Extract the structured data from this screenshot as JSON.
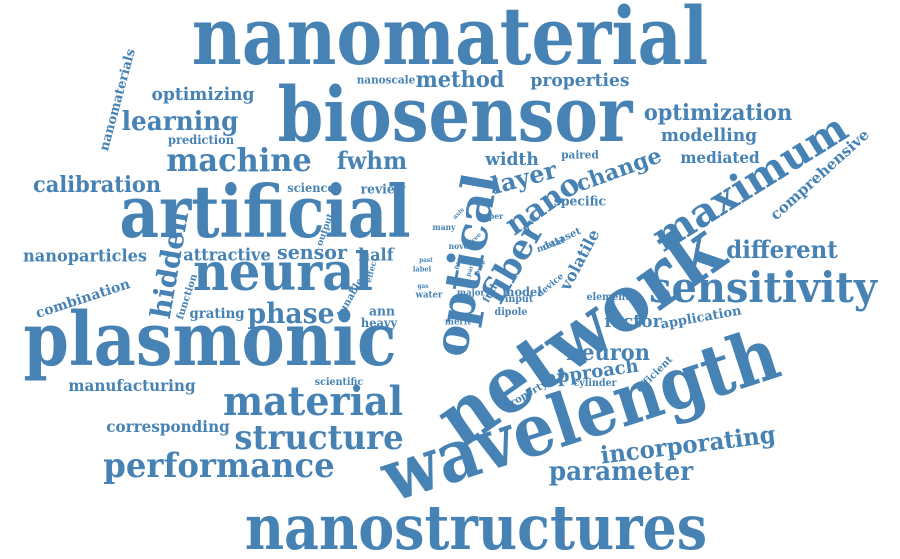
{
  "color": "#4682b4",
  "words": [
    {
      "text": "nanomaterial"
    },
    {
      "text": "biosensor"
    },
    {
      "text": "artificial"
    },
    {
      "text": "plasmonic"
    },
    {
      "text": "network"
    },
    {
      "text": "wavelength"
    },
    {
      "text": "nanostructures"
    },
    {
      "text": "optical"
    },
    {
      "text": "neural"
    },
    {
      "text": "maximum"
    },
    {
      "text": "sensitivity"
    },
    {
      "text": "material"
    },
    {
      "text": "structure"
    },
    {
      "text": "performance"
    },
    {
      "text": "machine"
    },
    {
      "text": "fiber"
    },
    {
      "text": "nano"
    },
    {
      "text": "hidden"
    },
    {
      "text": "phase"
    },
    {
      "text": "parameter"
    },
    {
      "text": "incorporating"
    },
    {
      "text": "different"
    },
    {
      "text": "learning"
    },
    {
      "text": "method"
    },
    {
      "text": "fwhm"
    },
    {
      "text": "layer"
    },
    {
      "text": "change"
    },
    {
      "text": "calibration"
    },
    {
      "text": "neuron"
    },
    {
      "text": "optimization"
    },
    {
      "text": "properties"
    },
    {
      "text": "optimizing"
    },
    {
      "text": "width"
    },
    {
      "text": "modelling"
    },
    {
      "text": "mediated"
    },
    {
      "text": "sensor"
    },
    {
      "text": "attractive"
    },
    {
      "text": "half"
    },
    {
      "text": "nanoparticles"
    },
    {
      "text": "corresponding"
    },
    {
      "text": "manufacturing"
    },
    {
      "text": "factor"
    },
    {
      "text": "approach"
    },
    {
      "text": "comprehensive"
    },
    {
      "text": "combination"
    },
    {
      "text": "grating"
    },
    {
      "text": "review"
    },
    {
      "text": "volatile"
    },
    {
      "text": "application"
    },
    {
      "text": "nanomaterials"
    },
    {
      "text": "prediction"
    },
    {
      "text": "nanoscale"
    },
    {
      "text": "science"
    },
    {
      "text": "scientific"
    },
    {
      "text": "specific"
    },
    {
      "text": "paired"
    },
    {
      "text": "ann"
    },
    {
      "text": "heavy"
    },
    {
      "text": "model"
    },
    {
      "text": "input"
    },
    {
      "text": "dipole"
    },
    {
      "text": "element"
    },
    {
      "text": "cylinder"
    },
    {
      "text": "efficient"
    },
    {
      "text": "property"
    },
    {
      "text": "function"
    },
    {
      "text": "tunable"
    },
    {
      "text": "output"
    },
    {
      "text": "effect"
    },
    {
      "text": "water"
    },
    {
      "text": "major"
    },
    {
      "text": "full"
    },
    {
      "text": "merit"
    },
    {
      "text": "dataset"
    },
    {
      "text": "metal"
    },
    {
      "text": "device"
    },
    {
      "text": "novel"
    },
    {
      "text": "many"
    },
    {
      "text": "paper"
    },
    {
      "text": "label"
    },
    {
      "text": "past"
    },
    {
      "text": "gas"
    },
    {
      "text": "axis"
    },
    {
      "text": "free"
    },
    {
      "text": "pure"
    },
    {
      "text": "part"
    },
    {
      "text": "poor"
    }
  ]
}
